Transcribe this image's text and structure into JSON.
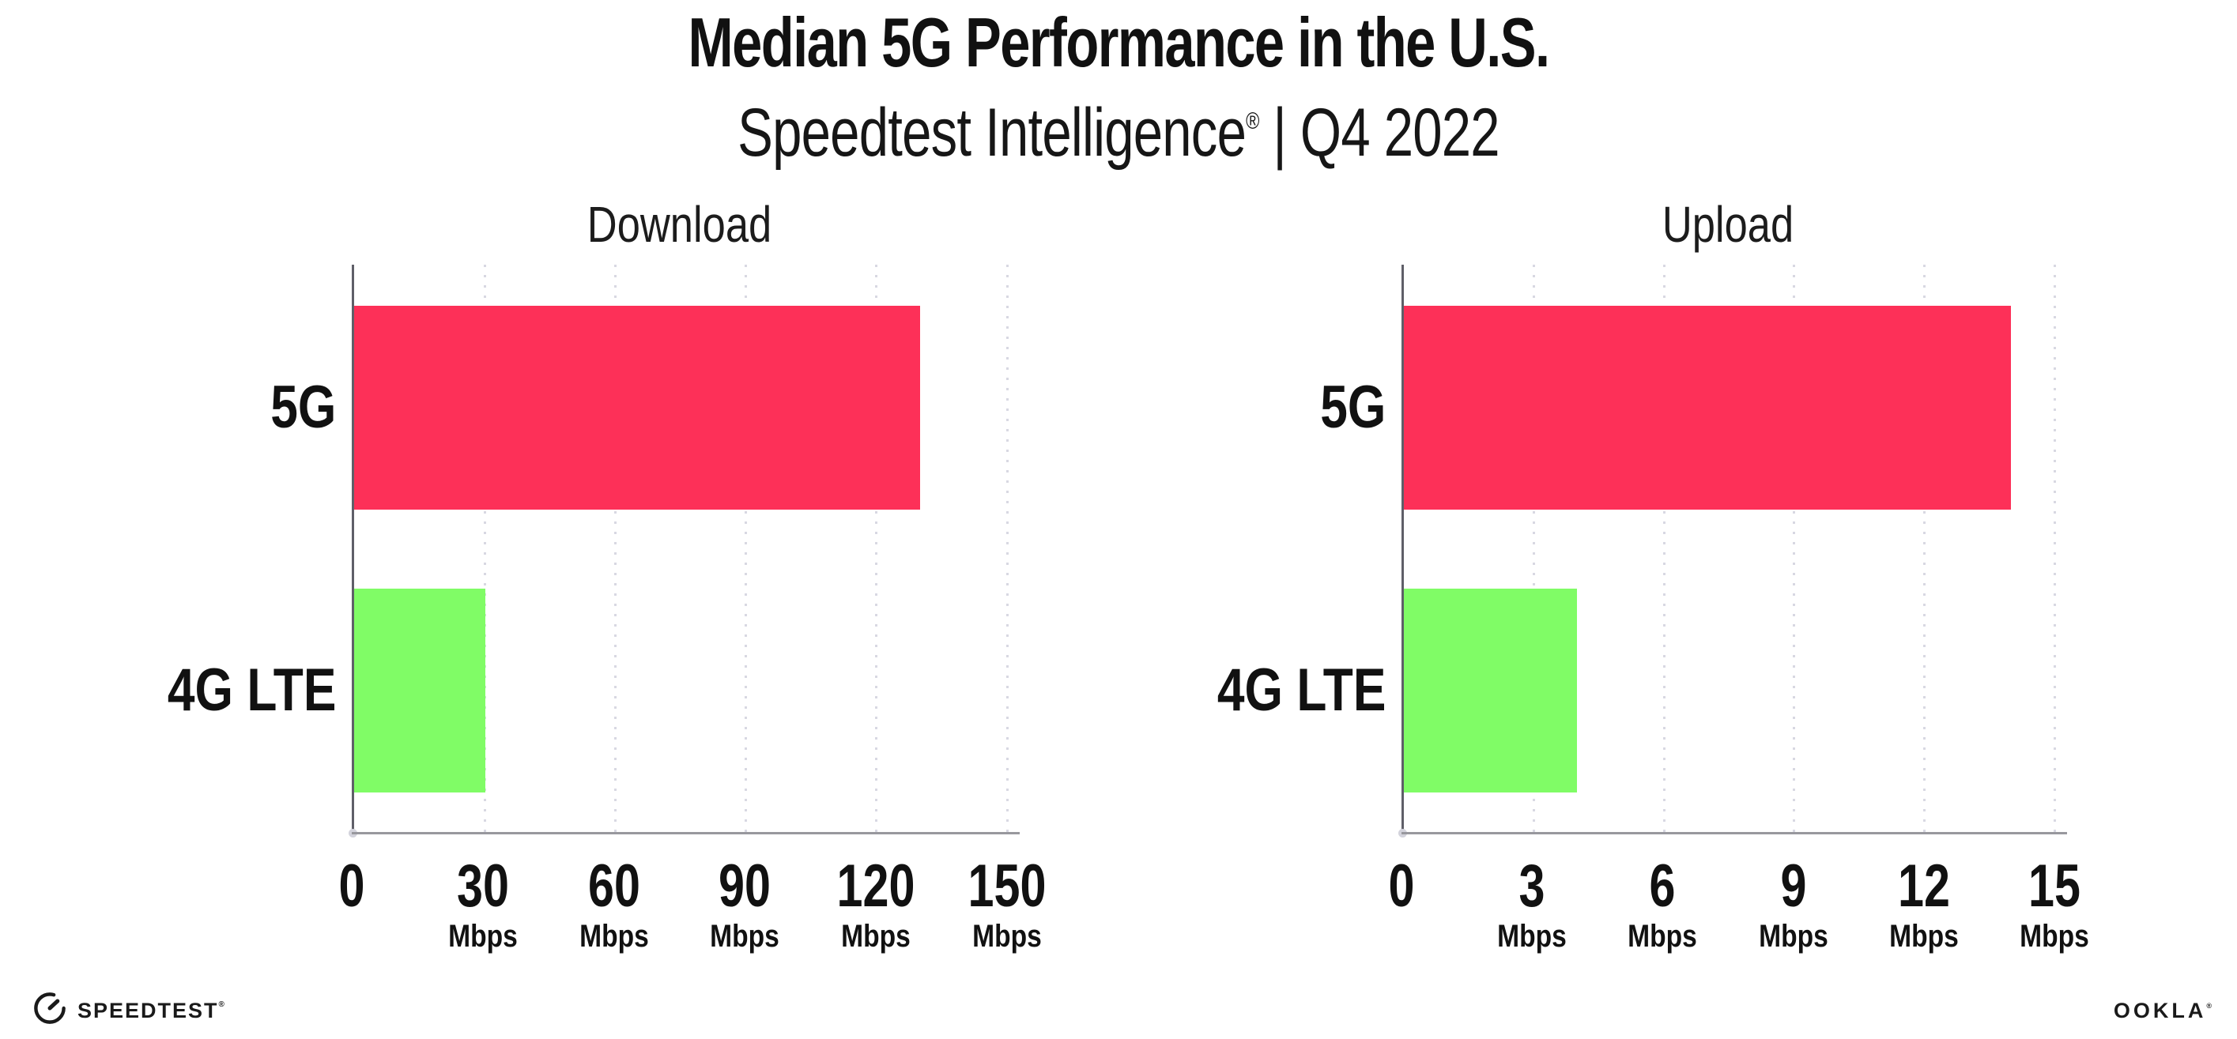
{
  "page": {
    "title": "Median 5G Performance in the U.S.",
    "subtitle": {
      "product": "Speedtest Intelligence",
      "registered": "®",
      "rest": " | Q4 2022"
    }
  },
  "colors": {
    "bar_5g": "#FD3058",
    "bar_4g": "#80FC66",
    "gridline": "#D8D8E2",
    "axis_y": "#5F5F68",
    "axis_x": "#98989E",
    "text": "#111111"
  },
  "chart_data": [
    {
      "type": "bar",
      "orientation": "horizontal",
      "title": "Download",
      "categories": [
        "5G",
        "4G LTE"
      ],
      "values": [
        130,
        30.2
      ],
      "unit": "Mbps",
      "xlim": [
        0,
        150
      ],
      "tick_values": [
        0,
        30,
        60,
        90,
        120,
        150
      ],
      "tick_labels": [
        "0",
        "30",
        "60",
        "90",
        "120",
        "150"
      ],
      "grid": "dotted-vertical",
      "legend": "none",
      "bar_colors": [
        "#FD3058",
        "#80FC66"
      ]
    },
    {
      "type": "bar",
      "orientation": "horizontal",
      "title": "Upload",
      "categories": [
        "5G",
        "4G LTE"
      ],
      "values": [
        14,
        4
      ],
      "unit": "Mbps",
      "xlim": [
        0,
        15
      ],
      "tick_values": [
        0,
        3,
        6,
        9,
        12,
        15
      ],
      "tick_labels": [
        "0",
        "3",
        "6",
        "9",
        "12",
        "15"
      ],
      "grid": "dotted-vertical",
      "legend": "none",
      "bar_colors": [
        "#FD3058",
        "#80FC66"
      ]
    }
  ],
  "footer": {
    "speedtest_label": "SPEEDTEST",
    "speedtest_reg": "®",
    "ookla_label": "OOKLA",
    "ookla_reg": "®"
  }
}
